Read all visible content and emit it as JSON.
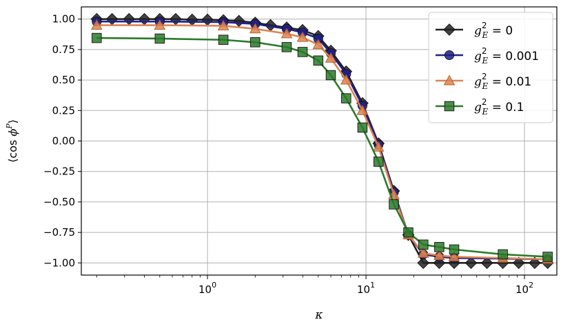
{
  "chart_data": {
    "type": "line",
    "title": "",
    "xlabel": "κ",
    "ylabel": "⟨cos ϕ^P⟩",
    "xscale": "log",
    "xlim": [
      0.16,
      160
    ],
    "ylim": [
      -1.1,
      1.1
    ],
    "xticks": [
      {
        "value": 1,
        "base": "10",
        "exp": "0"
      },
      {
        "value": 10,
        "base": "10",
        "exp": "1"
      },
      {
        "value": 100,
        "base": "10",
        "exp": "2"
      }
    ],
    "yticks": [
      {
        "value": 1.0,
        "label": "1.00"
      },
      {
        "value": 0.75,
        "label": "0.75"
      },
      {
        "value": 0.5,
        "label": "0.50"
      },
      {
        "value": 0.25,
        "label": "0.25"
      },
      {
        "value": 0.0,
        "label": "0.00"
      },
      {
        "value": -0.25,
        "label": "−0.25"
      },
      {
        "value": -0.5,
        "label": "−0.50"
      },
      {
        "value": -0.75,
        "label": "−0.75"
      },
      {
        "value": -1.0,
        "label": "−1.00"
      }
    ],
    "grid": true,
    "legend_position": "top-right",
    "series": [
      {
        "name": "g_E^2 = 0",
        "legend": {
          "var": "g",
          "sup": "2",
          "sub": "E",
          "rest": " = 0"
        },
        "color": "#222222",
        "marker": "diamond",
        "x": [
          0.2,
          0.25,
          0.32,
          0.4,
          0.5,
          0.63,
          0.8,
          1.0,
          1.26,
          1.58,
          2.0,
          2.5,
          3.16,
          3.98,
          5.0,
          6.0,
          7.5,
          9.5,
          12.0,
          15.0,
          18.5,
          23.0,
          29.0,
          36.0,
          46.0,
          58.0,
          73.0,
          92.0,
          116.0,
          140.0
        ],
        "y": [
          1.0,
          1.0,
          1.0,
          1.0,
          1.0,
          1.0,
          0.995,
          0.995,
          0.99,
          0.985,
          0.97,
          0.95,
          0.93,
          0.91,
          0.86,
          0.74,
          0.57,
          0.31,
          -0.02,
          -0.41,
          -0.77,
          -1.0,
          -1.0,
          -1.0,
          -1.0,
          -1.0,
          -1.0,
          -1.0,
          -1.0,
          -1.0
        ]
      },
      {
        "name": "g_E^2 = 0.001",
        "legend": {
          "var": "g",
          "sup": "2",
          "sub": "E",
          "rest": " = 0.001"
        },
        "color": "#1f1f8c",
        "marker": "circle",
        "x": [
          0.2,
          0.5,
          1.26,
          2.0,
          3.16,
          3.98,
          5.0,
          6.0,
          7.5,
          9.5,
          12.0,
          15.0,
          18.5,
          23.0,
          29.0,
          36.0,
          140.0
        ],
        "y": [
          0.98,
          0.98,
          0.975,
          0.96,
          0.92,
          0.89,
          0.84,
          0.72,
          0.55,
          0.29,
          -0.03,
          -0.42,
          -0.77,
          -0.93,
          -0.95,
          -0.96,
          -0.97
        ]
      },
      {
        "name": "g_E^2 = 0.01",
        "legend": {
          "var": "g",
          "sup": "2",
          "sub": "E",
          "rest": " = 0.01"
        },
        "color": "#dd8452",
        "marker": "triangle",
        "x": [
          0.2,
          0.5,
          1.26,
          2.0,
          3.16,
          3.98,
          5.0,
          6.0,
          7.5,
          9.5,
          12.0,
          15.0,
          18.5,
          23.0,
          29.0,
          36.0,
          73.0,
          140.0
        ],
        "y": [
          0.95,
          0.95,
          0.945,
          0.92,
          0.88,
          0.85,
          0.79,
          0.68,
          0.5,
          0.25,
          -0.05,
          -0.44,
          -0.77,
          -0.92,
          -0.94,
          -0.95,
          -0.96,
          -0.97
        ]
      },
      {
        "name": "g_E^2 = 0.1",
        "legend": {
          "var": "g",
          "sup": "2",
          "sub": "E",
          "rest": " = 0.1"
        },
        "color": "#2a7a2a",
        "marker": "square",
        "x": [
          0.2,
          0.5,
          1.26,
          2.0,
          3.16,
          3.98,
          5.0,
          6.0,
          7.5,
          9.5,
          12.0,
          15.0,
          18.5,
          23.0,
          29.0,
          36.0,
          73.0,
          140.0
        ],
        "y": [
          0.845,
          0.84,
          0.83,
          0.81,
          0.77,
          0.73,
          0.66,
          0.54,
          0.35,
          0.11,
          -0.17,
          -0.52,
          -0.75,
          -0.85,
          -0.87,
          -0.89,
          -0.93,
          -0.95
        ]
      }
    ]
  }
}
